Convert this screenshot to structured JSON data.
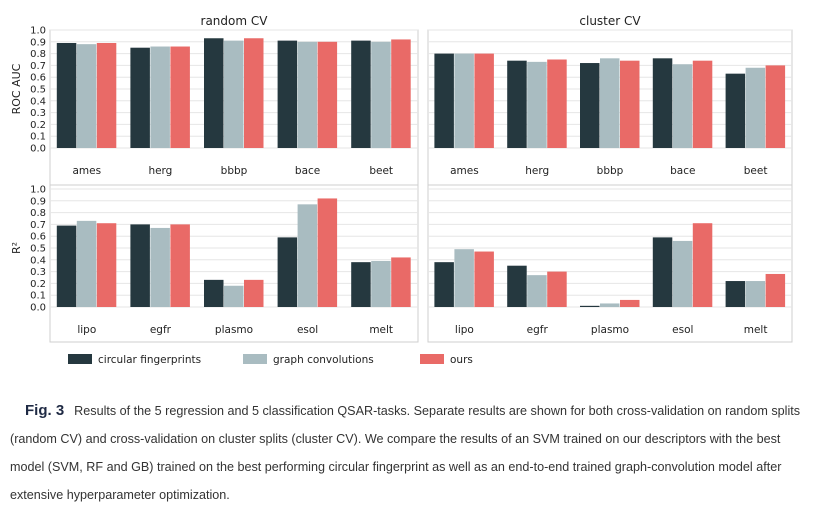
{
  "colors": {
    "circular": "#25383f",
    "graph": "#a9bcc1",
    "ours": "#e96a67",
    "grid": "#e6e6e6",
    "panel_border": "#cfcfcf",
    "text": "#222222"
  },
  "legend": [
    {
      "key": "circular",
      "label": "circular fingerprints"
    },
    {
      "key": "graph",
      "label": "graph convolutions"
    },
    {
      "key": "ours",
      "label": "ours"
    }
  ],
  "column_titles": [
    "random CV",
    "cluster CV"
  ],
  "row_ylabels": [
    "ROC AUC",
    "R²"
  ],
  "caption": {
    "label": "Fig. 3",
    "text": "Results of the 5 regression and 5 classification QSAR-tasks. Separate results are shown for both cross-validation on random splits (random CV) and cross-validation on cluster splits (cluster CV). We compare the results of an SVM trained on our descriptors with the best model (SVM, RF and GB) trained on the best performing circular fingerprint as well as an end-to-end trained graph-convolution model after extensive hyperparameter optimization."
  },
  "chart_data": [
    {
      "type": "bar",
      "title": "random CV",
      "ylabel": "ROC AUC",
      "ylim": [
        0,
        1
      ],
      "yticks": [
        "0.0",
        "0.1",
        "0.2",
        "0.3",
        "0.4",
        "0.5",
        "0.6",
        "0.7",
        "0.8",
        "0.9",
        "1.0"
      ],
      "categories": [
        "ames",
        "herg",
        "bbbp",
        "bace",
        "beet"
      ],
      "series": [
        {
          "name": "circular fingerprints",
          "key": "circular",
          "values": [
            0.89,
            0.85,
            0.93,
            0.91,
            0.91
          ]
        },
        {
          "name": "graph convolutions",
          "key": "graph",
          "values": [
            0.88,
            0.86,
            0.91,
            0.9,
            0.9
          ]
        },
        {
          "name": "ours",
          "key": "ours",
          "values": [
            0.89,
            0.86,
            0.93,
            0.9,
            0.92
          ]
        }
      ]
    },
    {
      "type": "bar",
      "title": "cluster CV",
      "ylabel": "",
      "ylim": [
        0,
        1
      ],
      "yticks": [],
      "categories": [
        "ames",
        "herg",
        "bbbp",
        "bace",
        "beet"
      ],
      "series": [
        {
          "name": "circular fingerprints",
          "key": "circular",
          "values": [
            0.8,
            0.74,
            0.72,
            0.76,
            0.63
          ]
        },
        {
          "name": "graph convolutions",
          "key": "graph",
          "values": [
            0.8,
            0.73,
            0.76,
            0.71,
            0.68
          ]
        },
        {
          "name": "ours",
          "key": "ours",
          "values": [
            0.8,
            0.75,
            0.74,
            0.74,
            0.7
          ]
        }
      ]
    },
    {
      "type": "bar",
      "title": "",
      "ylabel": "R²",
      "ylim": [
        0,
        1
      ],
      "yticks": [
        "0.0",
        "0.1",
        "0.2",
        "0.3",
        "0.4",
        "0.5",
        "0.6",
        "0.7",
        "0.8",
        "0.9",
        "1.0"
      ],
      "categories": [
        "lipo",
        "egfr",
        "plasmo",
        "esol",
        "melt"
      ],
      "series": [
        {
          "name": "circular fingerprints",
          "key": "circular",
          "values": [
            0.69,
            0.7,
            0.23,
            0.59,
            0.38
          ]
        },
        {
          "name": "graph convolutions",
          "key": "graph",
          "values": [
            0.73,
            0.67,
            0.18,
            0.87,
            0.39
          ]
        },
        {
          "name": "ours",
          "key": "ours",
          "values": [
            0.71,
            0.7,
            0.23,
            0.92,
            0.42
          ]
        }
      ]
    },
    {
      "type": "bar",
      "title": "",
      "ylabel": "",
      "ylim": [
        0,
        1
      ],
      "yticks": [],
      "categories": [
        "lipo",
        "egfr",
        "plasmo",
        "esol",
        "melt"
      ],
      "series": [
        {
          "name": "circular fingerprints",
          "key": "circular",
          "values": [
            0.38,
            0.35,
            0.01,
            0.59,
            0.22
          ]
        },
        {
          "name": "graph convolutions",
          "key": "graph",
          "values": [
            0.49,
            0.27,
            0.03,
            0.56,
            0.22
          ]
        },
        {
          "name": "ours",
          "key": "ours",
          "values": [
            0.47,
            0.3,
            0.06,
            0.71,
            0.28
          ]
        }
      ]
    }
  ]
}
